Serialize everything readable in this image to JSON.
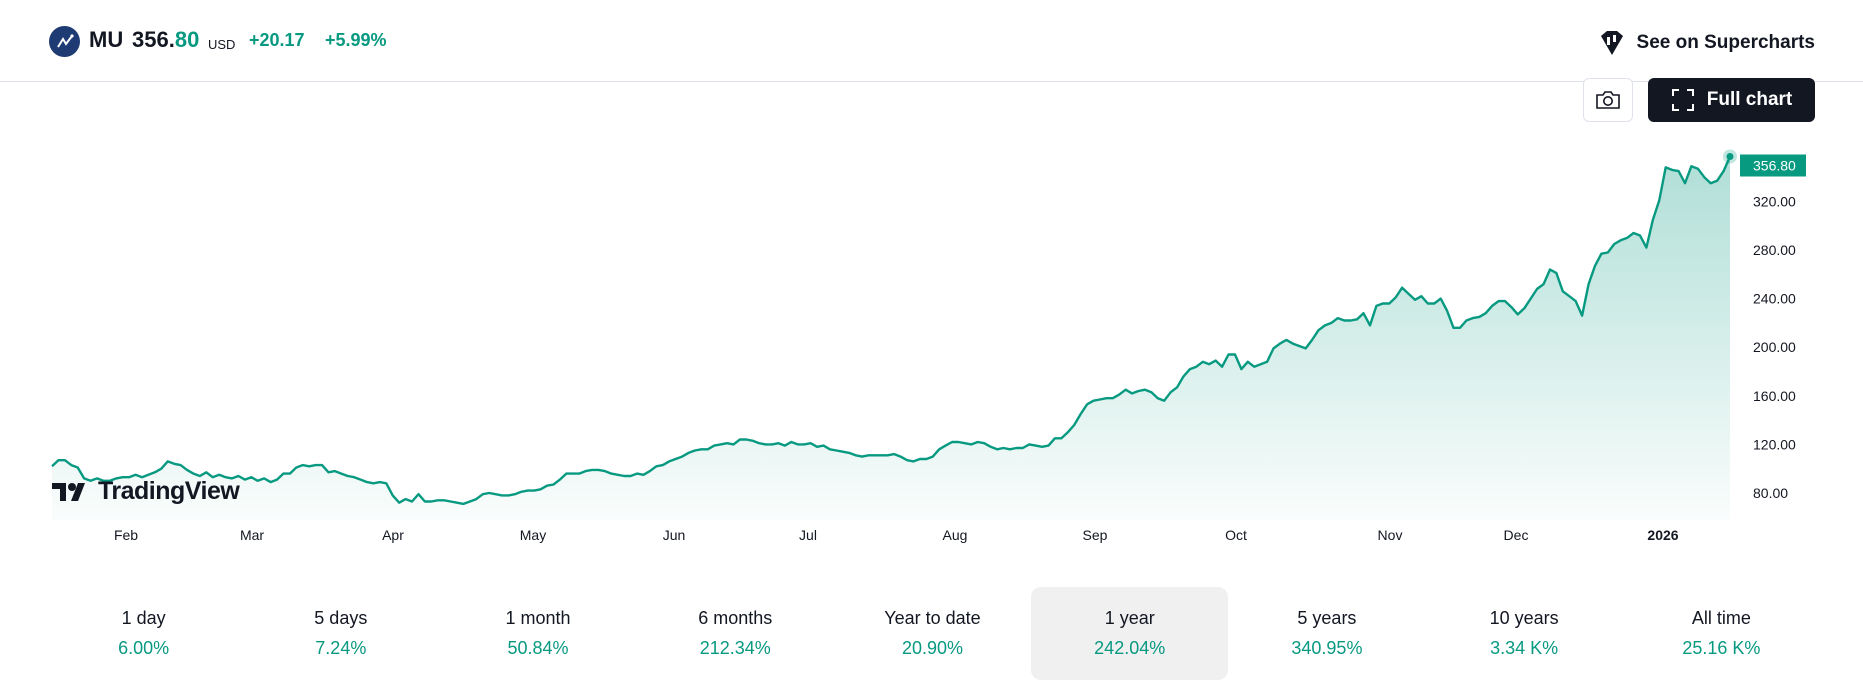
{
  "header": {
    "symbol": "MU",
    "price_int": "356.",
    "price_dec": "80",
    "currency": "USD",
    "change": "+20.17",
    "change_pct": "+5.99%",
    "supercharts_label": "See on Supercharts",
    "icons": [
      "micron-logo-icon",
      "supercharts-icon"
    ]
  },
  "toolbar": {
    "full_chart_label": "Full chart",
    "icons": [
      "camera-icon",
      "fullscreen-icon"
    ]
  },
  "brand": {
    "name": "TradingView"
  },
  "colors": {
    "accent": "#089981",
    "line": "#089981",
    "badge": "#089981",
    "dark": "#131722"
  },
  "chart_data": {
    "type": "area",
    "series": [
      {
        "name": "MU",
        "values": [
          102,
          107,
          107,
          103,
          101,
          92,
          90,
          92,
          90,
          90,
          92,
          93,
          93,
          95,
          93,
          95,
          97,
          100,
          106,
          104,
          103,
          99,
          96,
          94,
          97,
          93,
          95,
          93,
          92,
          94,
          91,
          93,
          90,
          92,
          89,
          91,
          96,
          96,
          101,
          103,
          102,
          103,
          103,
          97,
          98,
          96,
          94,
          93,
          91,
          89,
          88,
          89,
          88,
          78,
          72,
          75,
          73,
          79,
          73,
          73,
          74,
          74,
          73,
          72,
          71,
          73,
          75,
          79,
          80,
          79,
          78,
          78,
          79,
          81,
          82,
          82,
          83,
          86,
          87,
          91,
          96,
          96,
          96,
          98,
          99,
          99,
          98,
          96,
          95,
          94,
          94,
          96,
          95,
          98,
          102,
          103,
          106,
          108,
          110,
          113,
          115,
          116,
          116,
          119,
          120,
          121,
          120,
          124,
          124,
          123,
          121,
          120,
          120,
          121,
          119,
          122,
          120,
          120,
          121,
          118,
          119,
          116,
          115,
          114,
          113,
          111,
          110,
          111,
          111,
          111,
          111,
          112,
          110,
          107,
          106,
          108,
          108,
          110,
          116,
          119,
          122,
          122,
          121,
          120,
          122,
          121,
          118,
          116,
          117,
          116,
          117,
          117,
          120,
          119,
          118,
          119,
          125,
          125,
          130,
          136,
          145,
          153,
          156,
          157,
          158,
          158,
          161,
          165,
          162,
          164,
          165,
          163,
          158,
          156,
          163,
          167,
          176,
          182,
          184,
          188,
          186,
          189,
          184,
          194,
          194,
          182,
          188,
          184,
          186,
          188,
          199,
          203,
          206,
          203,
          201,
          199,
          206,
          214,
          218,
          220,
          224,
          222,
          222,
          223,
          228,
          218,
          234,
          236,
          236,
          241,
          249,
          244,
          239,
          242,
          236,
          236,
          240,
          230,
          216,
          216,
          222,
          224,
          225,
          228,
          234,
          238,
          238,
          233,
          227,
          232,
          240,
          248,
          252,
          264,
          261,
          246,
          242,
          238,
          226,
          252,
          267,
          277,
          278,
          285,
          288,
          290,
          294,
          292,
          282,
          305,
          321,
          348,
          346,
          345,
          335,
          349,
          347,
          340,
          335,
          337,
          345,
          357
        ],
        "last_value": "356.80"
      }
    ],
    "x_tick_labels": [
      "Feb",
      "Mar",
      "Apr",
      "May",
      "Jun",
      "Jul",
      "Aug",
      "Sep",
      "Oct",
      "Nov",
      "Dec",
      "2026"
    ],
    "y_tick_labels": [
      "80.00",
      "120.00",
      "160.00",
      "200.00",
      "240.00",
      "280.00",
      "320.00"
    ],
    "y_ticks": [
      80,
      120,
      160,
      200,
      240,
      280,
      320
    ],
    "ylim": [
      66,
      364
    ],
    "grid": false,
    "legend": "none"
  },
  "periods": [
    {
      "label": "1 day",
      "value": "6.00%",
      "active": false
    },
    {
      "label": "5 days",
      "value": "7.24%",
      "active": false
    },
    {
      "label": "1 month",
      "value": "50.84%",
      "active": false
    },
    {
      "label": "6 months",
      "value": "212.34%",
      "active": false
    },
    {
      "label": "Year to date",
      "value": "20.90%",
      "active": false
    },
    {
      "label": "1 year",
      "value": "242.04%",
      "active": true
    },
    {
      "label": "5 years",
      "value": "340.95%",
      "active": false
    },
    {
      "label": "10 years",
      "value": "3.34 K%",
      "active": false
    },
    {
      "label": "All time",
      "value": "25.16 K%",
      "active": false
    }
  ]
}
